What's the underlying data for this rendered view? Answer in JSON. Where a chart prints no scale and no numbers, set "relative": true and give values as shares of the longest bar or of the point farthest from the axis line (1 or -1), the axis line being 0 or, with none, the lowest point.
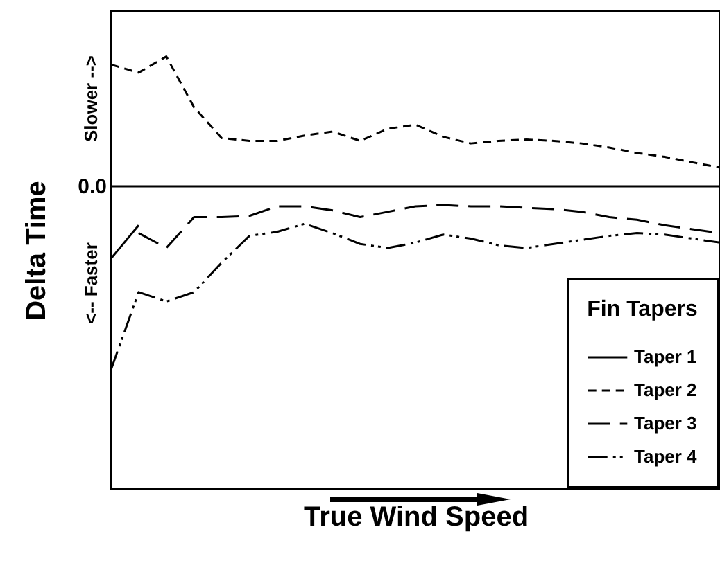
{
  "chart_data": {
    "type": "line",
    "relative": true,
    "xlabel": "True Wind Speed",
    "ylabel": "Delta Time",
    "legend_title": "Fin Tapers",
    "legend": "bottom right",
    "annotations": [
      "Slower -->",
      "<-- Faster"
    ],
    "ref_lines": [
      {
        "axis": "y",
        "value": 0,
        "label": "0.0"
      }
    ],
    "categories": [
      null,
      null,
      null,
      null,
      null,
      null,
      null,
      null,
      null,
      null,
      null,
      null,
      null,
      null,
      null,
      null,
      null,
      null,
      null,
      null,
      null,
      null,
      null
    ],
    "series": [
      {
        "name": "Taper 1",
        "color": "#000000",
        "line_style": "solid",
        "values": [
          -0.394,
          -0.212,
          null,
          null,
          null,
          null,
          null,
          null,
          null,
          null,
          null,
          null,
          null,
          null,
          null,
          null,
          null,
          null,
          null,
          null,
          null,
          null,
          null
        ]
      },
      {
        "name": "Taper 2",
        "color": "#000000",
        "line_style": "dashed",
        "values": [
          0.664,
          0.62,
          0.708,
          0.431,
          0.263,
          0.248,
          0.248,
          0.277,
          0.299,
          0.248,
          0.314,
          0.336,
          0.27,
          0.234,
          0.248,
          0.255,
          0.248,
          0.234,
          0.212,
          0.182,
          0.161,
          0.131,
          0.102
        ]
      },
      {
        "name": "Taper 3",
        "color": "#000000",
        "line_style": "longdash",
        "values": [
          null,
          -0.255,
          -0.336,
          -0.168,
          -0.168,
          -0.161,
          -0.109,
          -0.109,
          -0.131,
          -0.168,
          -0.139,
          -0.109,
          -0.102,
          -0.109,
          -0.109,
          -0.117,
          -0.124,
          -0.139,
          -0.168,
          -0.182,
          -0.212,
          -0.234,
          -0.255
        ]
      },
      {
        "name": "Taper 4",
        "color": "#000000",
        "line_style": "dashdot",
        "values": [
          -1,
          -0.577,
          -0.628,
          -0.577,
          -0.416,
          -0.27,
          -0.248,
          -0.204,
          -0.255,
          -0.314,
          -0.336,
          -0.307,
          -0.263,
          -0.285,
          -0.321,
          -0.336,
          -0.314,
          -0.292,
          -0.27,
          -0.255,
          -0.263,
          -0.285,
          -0.307
        ]
      }
    ]
  }
}
